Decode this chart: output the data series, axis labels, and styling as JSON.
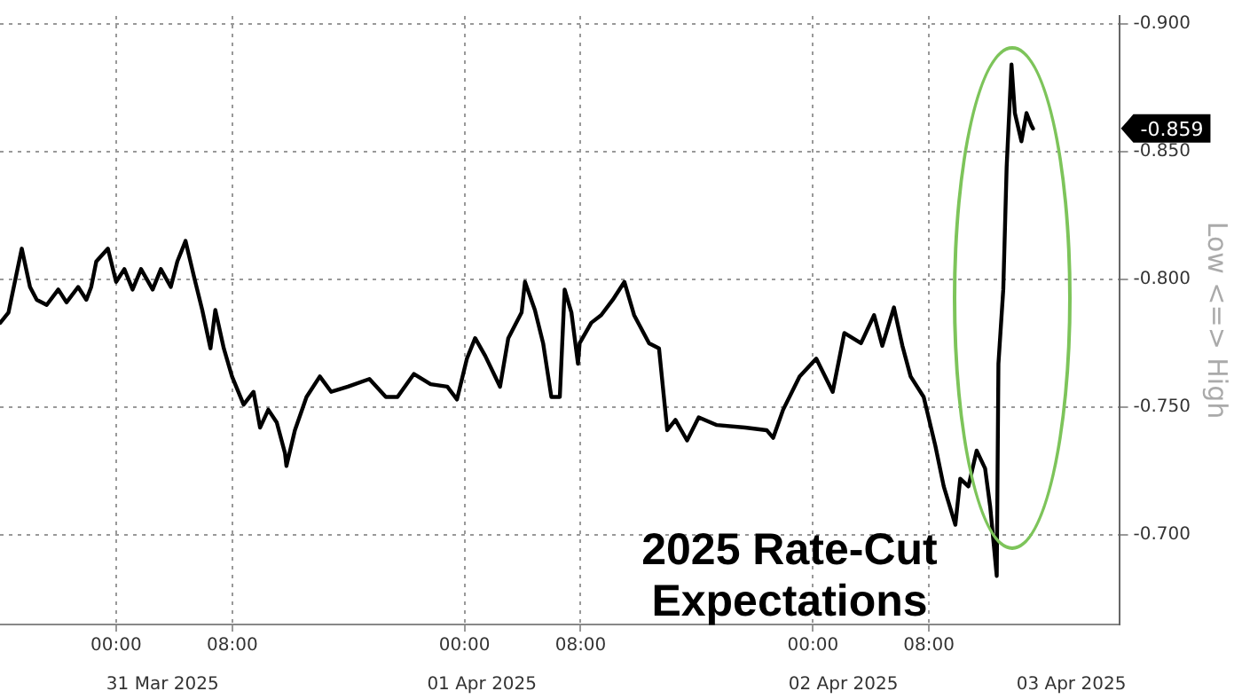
{
  "chart_data": {
    "type": "line",
    "title": "2025 Rate-Cut Expectations",
    "ylabel": "Low <=> High",
    "xlim": [
      "2025-03-30T16:00",
      "2025-04-02T21:06"
    ],
    "xticks": [
      {
        "value": "2025-03-31T00:00",
        "label": "00:00"
      },
      {
        "value": "2025-03-31T08:00",
        "label": "08:00"
      },
      {
        "value": "2025-04-01T00:00",
        "label": "00:00"
      },
      {
        "value": "2025-04-01T08:00",
        "label": "08:00"
      },
      {
        "value": "2025-04-02T00:00",
        "label": "00:00"
      },
      {
        "value": "2025-04-02T08:00",
        "label": "08:00"
      }
    ],
    "x2lim": [
      "2025-03-31T01:24",
      "2025-04-03T06:30"
    ],
    "x2ticks": [
      {
        "value": "2025-03-31T12:36",
        "label": "31 Mar 2025"
      },
      {
        "value": "2025-04-01T10:36",
        "label": "01 Apr 2025"
      },
      {
        "value": "2025-04-02T11:30",
        "label": "02 Apr 2025"
      },
      {
        "value": "2025-04-03T03:12",
        "label": "03 Apr 2025"
      }
    ],
    "ylim": [
      -0.665,
      -0.903
    ],
    "yticks": [
      {
        "value": -0.9,
        "label": "-0.900"
      },
      {
        "value": -0.85,
        "label": "-0.850"
      },
      {
        "value": -0.8,
        "label": "-0.800"
      },
      {
        "value": -0.75,
        "label": "-0.750"
      },
      {
        "value": -0.7,
        "label": "-0.700"
      }
    ],
    "grid": true,
    "legend": false,
    "marker": "none",
    "line_style": "solid",
    "annotations": [
      "-0.859"
    ],
    "series": [
      {
        "color": "#000000",
        "x": [
          "2025-03-30T16:01",
          "2025-03-30T16:35",
          "2025-03-30T17:30",
          "2025-03-30T18:04",
          "2025-03-30T18:32",
          "2025-03-30T19:13",
          "2025-03-30T20:01",
          "2025-03-30T20:35",
          "2025-03-30T21:23",
          "2025-03-30T21:57",
          "2025-03-30T22:17",
          "2025-03-30T22:38",
          "2025-03-30T23:26",
          "2025-03-31T00:00",
          "2025-03-31T00:34",
          "2025-03-31T01:08",
          "2025-03-31T01:43",
          "2025-03-31T02:31",
          "2025-03-31T03:05",
          "2025-03-31T03:46",
          "2025-03-31T04:13",
          "2025-03-31T04:47",
          "2025-03-31T05:22",
          "2025-03-31T05:56",
          "2025-03-31T06:30",
          "2025-03-31T06:50",
          "2025-03-31T07:25",
          "2025-03-31T07:59",
          "2025-03-31T08:47",
          "2025-03-31T09:28",
          "2025-03-31T09:55",
          "2025-03-31T10:29",
          "2025-03-31T11:04",
          "2025-03-31T11:38",
          "2025-03-31T11:44",
          "2025-03-31T12:19",
          "2025-03-31T13:07",
          "2025-03-31T14:02",
          "2025-03-31T14:49",
          "2025-03-31T15:58",
          "2025-03-31T17:27",
          "2025-03-31T18:35",
          "2025-03-31T19:23",
          "2025-03-31T20:31",
          "2025-03-31T21:40",
          "2025-03-31T22:49",
          "2025-03-31T23:29",
          "2025-04-01T00:10",
          "2025-04-01T00:44",
          "2025-04-01T01:26",
          "2025-04-01T02:27",
          "2025-04-01T03:01",
          "2025-04-01T03:56",
          "2025-04-01T04:10",
          "2025-04-01T04:51",
          "2025-04-01T05:25",
          "2025-04-01T05:59",
          "2025-04-01T06:34",
          "2025-04-01T06:54",
          "2025-04-01T07:22",
          "2025-04-01T07:49",
          "2025-04-01T07:56",
          "2025-04-01T08:44",
          "2025-04-01T09:25",
          "2025-04-01T10:13",
          "2025-04-01T11:01",
          "2025-04-01T11:41",
          "2025-04-01T12:43",
          "2025-04-01T13:24",
          "2025-04-01T13:58",
          "2025-04-01T14:32",
          "2025-04-01T15:20",
          "2025-04-01T16:08",
          "2025-04-01T17:23",
          "2025-04-01T19:20",
          "2025-04-01T20:49",
          "2025-04-01T21:16",
          "2025-04-01T21:57",
          "2025-04-01T23:05",
          "2025-04-02T00:14",
          "2025-04-02T01:22",
          "2025-04-02T02:10",
          "2025-04-02T03:19",
          "2025-04-02T04:13",
          "2025-04-02T04:47",
          "2025-04-02T05:35",
          "2025-04-02T06:10",
          "2025-04-02T06:44",
          "2025-04-02T07:38",
          "2025-04-02T08:26",
          "2025-04-02T09:01",
          "2025-04-02T09:49",
          "2025-04-02T10:09",
          "2025-04-02T10:43",
          "2025-04-02T11:17",
          "2025-04-02T11:52",
          "2025-04-02T12:13",
          "2025-04-02T12:40",
          "2025-04-02T12:47",
          "2025-04-02T13:07",
          "2025-04-02T13:21",
          "2025-04-02T13:41",
          "2025-04-02T13:55",
          "2025-04-02T14:22",
          "2025-04-02T14:43",
          "2025-04-02T15:04",
          "2025-04-02T15:10"
        ],
        "values": [
          -0.783,
          -0.787,
          -0.812,
          -0.797,
          -0.792,
          -0.79,
          -0.796,
          -0.791,
          -0.797,
          -0.792,
          -0.797,
          -0.807,
          -0.812,
          -0.799,
          -0.804,
          -0.796,
          -0.804,
          -0.796,
          -0.804,
          -0.797,
          -0.807,
          -0.815,
          -0.801,
          -0.788,
          -0.773,
          -0.788,
          -0.773,
          -0.762,
          -0.751,
          -0.756,
          -0.742,
          -0.749,
          -0.744,
          -0.732,
          -0.727,
          -0.741,
          -0.754,
          -0.762,
          -0.756,
          -0.758,
          -0.761,
          -0.754,
          -0.754,
          -0.763,
          -0.759,
          -0.758,
          -0.753,
          -0.769,
          -0.777,
          -0.77,
          -0.758,
          -0.777,
          -0.787,
          -0.799,
          -0.788,
          -0.775,
          -0.754,
          -0.754,
          -0.796,
          -0.787,
          -0.767,
          -0.775,
          -0.783,
          -0.786,
          -0.792,
          -0.799,
          -0.786,
          -0.775,
          -0.773,
          -0.741,
          -0.745,
          -0.737,
          -0.746,
          -0.743,
          -0.742,
          -0.741,
          -0.738,
          -0.749,
          -0.762,
          -0.769,
          -0.756,
          -0.779,
          -0.775,
          -0.786,
          -0.774,
          -0.789,
          -0.774,
          -0.762,
          -0.754,
          -0.735,
          -0.719,
          -0.704,
          -0.722,
          -0.719,
          -0.733,
          -0.726,
          -0.711,
          -0.684,
          -0.767,
          -0.796,
          -0.844,
          -0.884,
          -0.865,
          -0.854,
          -0.865,
          -0.86,
          -0.859
        ]
      }
    ]
  }
}
